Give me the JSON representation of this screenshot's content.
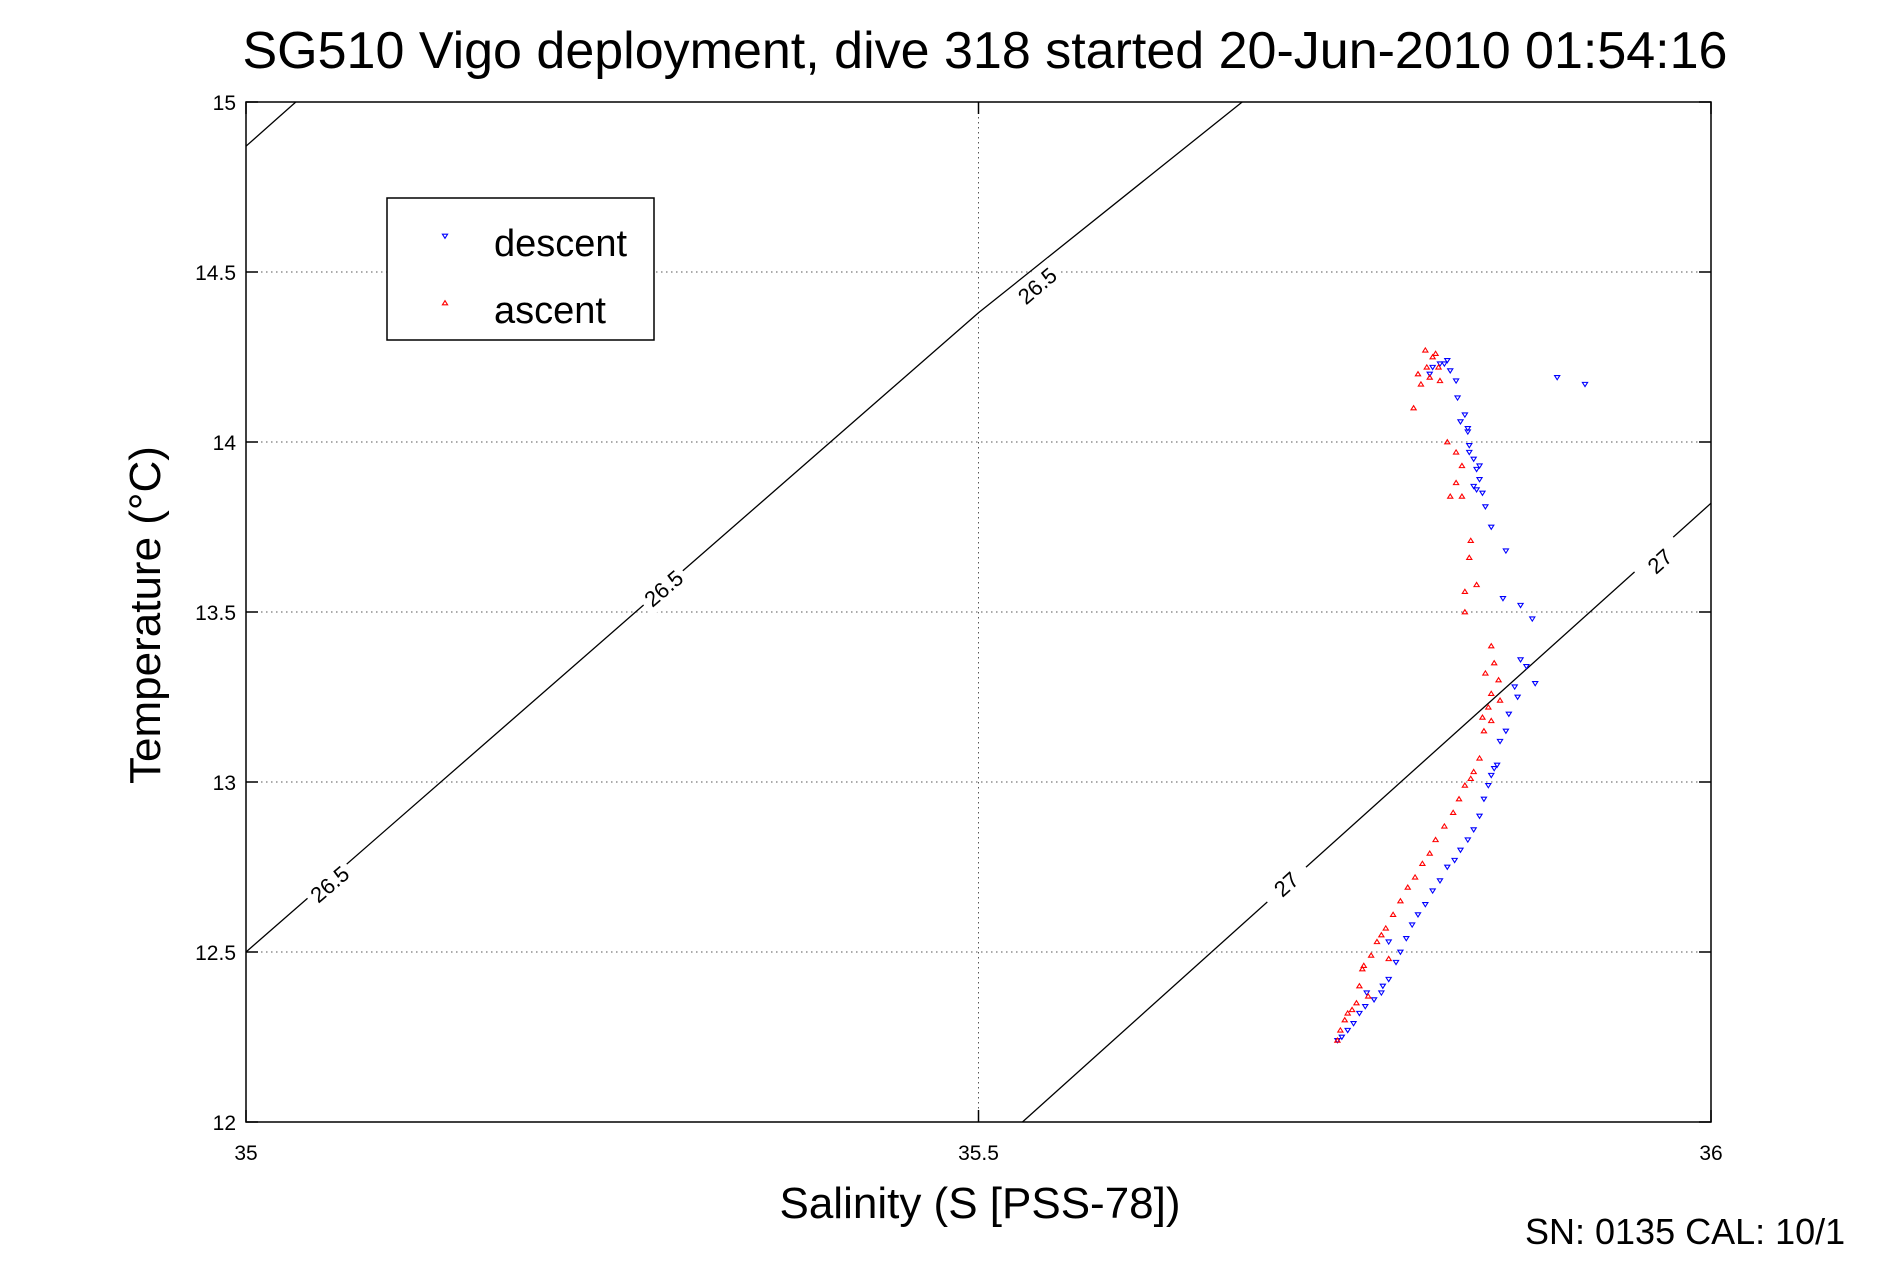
{
  "chart_data": {
    "type": "scatter",
    "title": "SG510 Vigo deployment, dive 318 started 20-Jun-2010 01:54:16",
    "xlabel": "Salinity (S [PSS-78])",
    "ylabel": "Temperature (°C)",
    "xlim": [
      35,
      36
    ],
    "ylim": [
      12,
      15
    ],
    "x_ticks": [
      "35",
      "35.5",
      "36"
    ],
    "y_ticks": [
      "12",
      "12.5",
      "13",
      "13.5",
      "14",
      "14.5",
      "15"
    ],
    "grid": true,
    "legend_position": "top-left",
    "footer_text": "SN: 0135  CAL: 10/1",
    "contours": [
      {
        "level": "26.5",
        "points": [
          [
            35.0,
            14.87
          ],
          [
            35.034,
            15.0
          ]
        ],
        "labels": []
      },
      {
        "level": "26.5",
        "points": [
          [
            35.0,
            12.5
          ],
          [
            35.5,
            14.38
          ],
          [
            35.68,
            15.0
          ]
        ],
        "labels": [
          {
            "text": "26.5",
            "x": 35.057,
            "y": 12.7
          },
          {
            "text": "26.5",
            "x": 35.285,
            "y": 13.57
          },
          {
            "text": "26.5",
            "x": 35.54,
            "y": 14.46
          }
        ]
      },
      {
        "level": "27",
        "points": [
          [
            35.53,
            12.0
          ],
          [
            36.0,
            13.82
          ]
        ],
        "labels": [
          {
            "text": "27",
            "x": 35.71,
            "y": 12.7
          },
          {
            "text": "27",
            "x": 35.965,
            "y": 13.65
          }
        ]
      }
    ],
    "series": [
      {
        "name": "descent",
        "color": "#0000ff",
        "marker": "triangle-down",
        "points": [
          [
            35.818,
            14.23
          ],
          [
            35.822,
            14.21
          ],
          [
            35.826,
            14.18
          ],
          [
            35.827,
            14.13
          ],
          [
            35.832,
            14.08
          ],
          [
            35.834,
            14.04
          ],
          [
            35.835,
            13.99
          ],
          [
            35.838,
            13.95
          ],
          [
            35.84,
            13.92
          ],
          [
            35.842,
            13.89
          ],
          [
            35.844,
            13.85
          ],
          [
            35.846,
            13.81
          ],
          [
            35.85,
            13.75
          ],
          [
            35.86,
            13.68
          ],
          [
            35.87,
            13.52
          ],
          [
            35.878,
            13.48
          ],
          [
            35.87,
            13.36
          ],
          [
            35.866,
            13.28
          ],
          [
            35.862,
            13.2
          ],
          [
            35.856,
            13.12
          ],
          [
            35.852,
            13.04
          ],
          [
            35.848,
            12.99
          ],
          [
            35.845,
            12.95
          ],
          [
            35.842,
            12.9
          ],
          [
            35.838,
            12.86
          ],
          [
            35.834,
            12.83
          ],
          [
            35.829,
            12.8
          ],
          [
            35.825,
            12.77
          ],
          [
            35.82,
            12.75
          ],
          [
            35.815,
            12.71
          ],
          [
            35.81,
            12.68
          ],
          [
            35.805,
            12.64
          ],
          [
            35.8,
            12.61
          ],
          [
            35.796,
            12.58
          ],
          [
            35.792,
            12.54
          ],
          [
            35.788,
            12.5
          ],
          [
            35.785,
            12.47
          ],
          [
            35.78,
            12.42
          ],
          [
            35.775,
            12.38
          ],
          [
            35.77,
            12.36
          ],
          [
            35.764,
            12.34
          ],
          [
            35.76,
            12.32
          ],
          [
            35.756,
            12.29
          ],
          [
            35.752,
            12.27
          ],
          [
            35.748,
            12.25
          ],
          [
            35.745,
            12.24
          ],
          [
            35.82,
            14.24
          ],
          [
            35.815,
            14.23
          ],
          [
            35.81,
            14.22
          ],
          [
            35.808,
            14.2
          ],
          [
            35.835,
            13.97
          ],
          [
            35.842,
            13.93
          ],
          [
            35.838,
            13.87
          ],
          [
            35.84,
            13.86
          ],
          [
            35.829,
            14.06
          ],
          [
            35.834,
            14.03
          ],
          [
            35.895,
            14.19
          ],
          [
            35.914,
            14.17
          ],
          [
            35.858,
            13.54
          ],
          [
            35.874,
            13.34
          ],
          [
            35.88,
            13.29
          ],
          [
            35.868,
            13.25
          ],
          [
            35.86,
            13.15
          ],
          [
            35.854,
            13.05
          ],
          [
            35.85,
            13.02
          ],
          [
            35.78,
            12.53
          ],
          [
            35.776,
            12.4
          ],
          [
            35.765,
            12.38
          ]
        ]
      },
      {
        "name": "ascent",
        "color": "#ff0000",
        "marker": "triangle-up",
        "points": [
          [
            35.805,
            14.27
          ],
          [
            35.81,
            14.25
          ],
          [
            35.814,
            14.22
          ],
          [
            35.808,
            14.19
          ],
          [
            35.802,
            14.17
          ],
          [
            35.797,
            14.1
          ],
          [
            35.815,
            14.18
          ],
          [
            35.82,
            14.0
          ],
          [
            35.826,
            13.97
          ],
          [
            35.83,
            13.93
          ],
          [
            35.826,
            13.88
          ],
          [
            35.83,
            13.84
          ],
          [
            35.822,
            13.84
          ],
          [
            35.835,
            13.66
          ],
          [
            35.84,
            13.58
          ],
          [
            35.832,
            13.5
          ],
          [
            35.85,
            13.4
          ],
          [
            35.852,
            13.35
          ],
          [
            35.855,
            13.3
          ],
          [
            35.85,
            13.26
          ],
          [
            35.848,
            13.22
          ],
          [
            35.85,
            13.18
          ],
          [
            35.845,
            13.15
          ],
          [
            35.842,
            13.07
          ],
          [
            35.838,
            13.03
          ],
          [
            35.832,
            12.99
          ],
          [
            35.828,
            12.95
          ],
          [
            35.824,
            12.91
          ],
          [
            35.818,
            12.87
          ],
          [
            35.812,
            12.83
          ],
          [
            35.808,
            12.79
          ],
          [
            35.803,
            12.76
          ],
          [
            35.798,
            12.72
          ],
          [
            35.793,
            12.69
          ],
          [
            35.788,
            12.65
          ],
          [
            35.783,
            12.61
          ],
          [
            35.778,
            12.57
          ],
          [
            35.772,
            12.53
          ],
          [
            35.768,
            12.49
          ],
          [
            35.763,
            12.46
          ],
          [
            35.76,
            12.4
          ],
          [
            35.758,
            12.35
          ],
          [
            35.755,
            12.33
          ],
          [
            35.75,
            12.3
          ],
          [
            35.747,
            12.27
          ],
          [
            35.745,
            12.24
          ],
          [
            35.812,
            14.26
          ],
          [
            35.806,
            14.22
          ],
          [
            35.8,
            14.2
          ],
          [
            35.836,
            13.71
          ],
          [
            35.832,
            13.56
          ],
          [
            35.846,
            13.32
          ],
          [
            35.856,
            13.24
          ],
          [
            35.844,
            13.19
          ],
          [
            35.836,
            13.01
          ],
          [
            35.78,
            12.48
          ],
          [
            35.766,
            12.37
          ],
          [
            35.752,
            12.32
          ],
          [
            35.762,
            12.45
          ],
          [
            35.775,
            12.55
          ]
        ]
      }
    ]
  }
}
